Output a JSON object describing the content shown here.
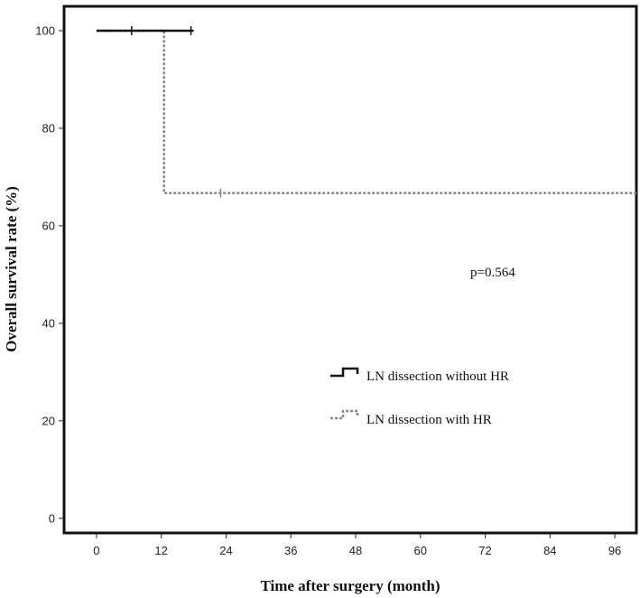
{
  "chart_data": {
    "type": "line",
    "subtype": "kaplan-meier step",
    "xlabel": "Time after surgery (month)",
    "ylabel": "Overall survival rate (%)",
    "xlim": [
      -6,
      100
    ],
    "ylim": [
      -3,
      105
    ],
    "x_ticks": [
      0,
      12,
      24,
      36,
      48,
      60,
      72,
      84,
      96
    ],
    "y_ticks": [
      0,
      20,
      40,
      60,
      80,
      100
    ],
    "grid": false,
    "legend_position": "center-right",
    "annotation": "p=0.564",
    "series": [
      {
        "name": "LN dissection without HR",
        "style": "solid",
        "color": "#111111",
        "steps": [
          [
            0,
            100
          ],
          [
            18,
            100
          ]
        ],
        "censored": [
          [
            6.5,
            100
          ],
          [
            17.5,
            100
          ]
        ]
      },
      {
        "name": "LN dissection with HR",
        "style": "dotted",
        "color": "#888888",
        "steps": [
          [
            0,
            100
          ],
          [
            12.5,
            100
          ],
          [
            12.5,
            66.7
          ],
          [
            100,
            66.7
          ]
        ],
        "censored": [
          [
            23,
            66.7
          ]
        ]
      }
    ]
  }
}
